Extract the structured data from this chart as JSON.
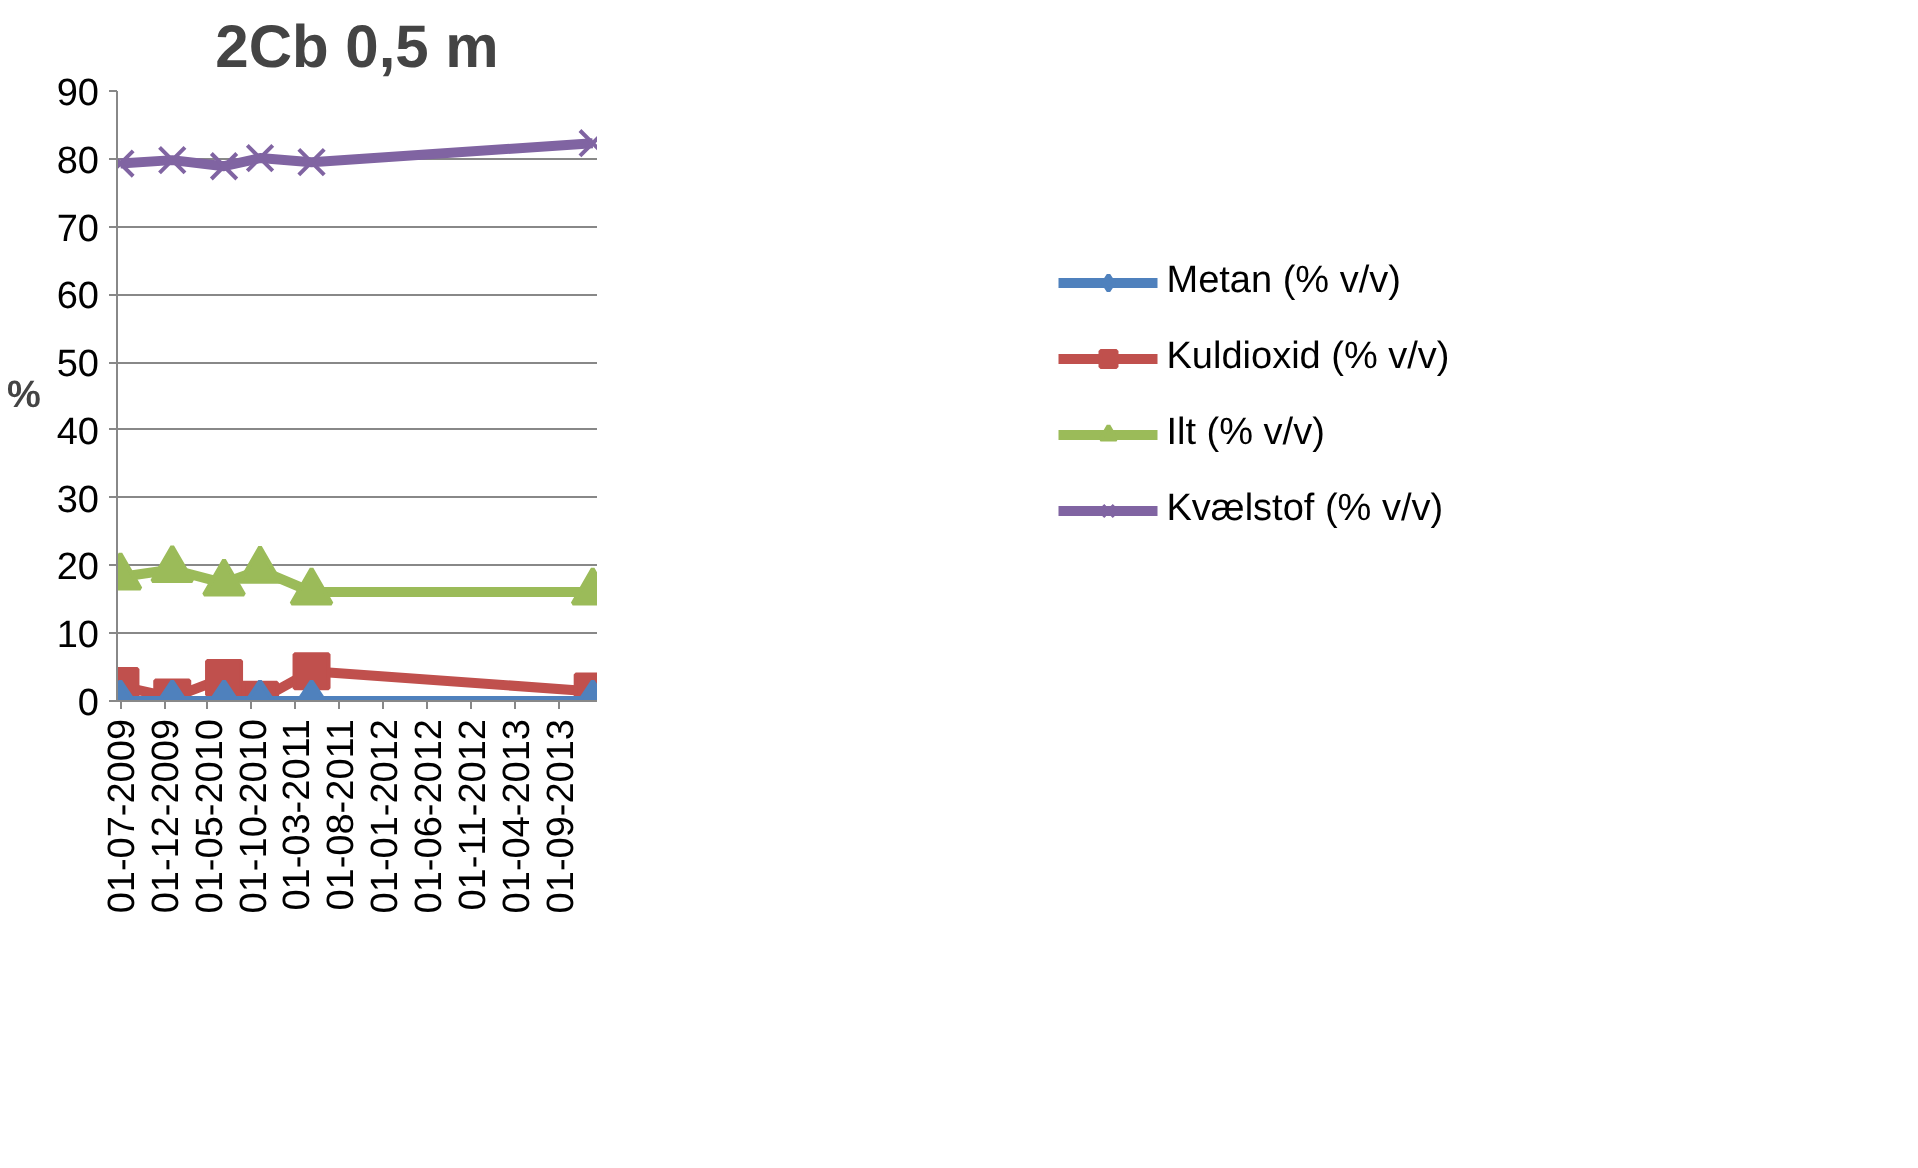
{
  "chart_data": {
    "type": "line",
    "title": "2Cb 0,5 m",
    "ylabel": "%",
    "x": [
      "2009-07-01",
      "2009-12-28",
      "2010-06-26",
      "2010-10-29",
      "2011-04-26",
      "2013-12-28"
    ],
    "series": [
      {
        "name": "Metan (% v/v)",
        "color": "#4f81bd",
        "marker": "diamond",
        "values": [
          0,
          0,
          0,
          0,
          0,
          0
        ]
      },
      {
        "name": "Kuldioxid (% v/v)",
        "color": "#c0504d",
        "marker": "square",
        "values": [
          2.2,
          0.5,
          3.4,
          0.2,
          4.4,
          1.4
        ]
      },
      {
        "name": "Ilt (% v/v)",
        "color": "#9bbb59",
        "marker": "triangle",
        "values": [
          18.3,
          19.4,
          17.4,
          19.3,
          16.1,
          16.1
        ]
      },
      {
        "name": "Kvælstof (% v/v)",
        "color": "#8064a2",
        "marker": "cross",
        "values": [
          79.3,
          79.8,
          78.9,
          80.1,
          79.5,
          82.3
        ]
      }
    ],
    "xlim": [
      "2009-06-19",
      "2014-01-12"
    ],
    "xticks": [
      {
        "value": "2009-07-01",
        "label": "01-07-2009"
      },
      {
        "value": "2009-12-01",
        "label": "01-12-2009"
      },
      {
        "value": "2010-05-01",
        "label": "01-05-2010"
      },
      {
        "value": "2010-10-01",
        "label": "01-10-2010"
      },
      {
        "value": "2011-03-01",
        "label": "01-03-2011"
      },
      {
        "value": "2011-08-01",
        "label": "01-08-2011"
      },
      {
        "value": "2012-01-01",
        "label": "01-01-2012"
      },
      {
        "value": "2012-06-01",
        "label": "01-06-2012"
      },
      {
        "value": "2012-11-01",
        "label": "01-11-2012"
      },
      {
        "value": "2013-04-01",
        "label": "01-04-2013"
      },
      {
        "value": "2013-09-01",
        "label": "01-09-2013"
      }
    ],
    "ylim": [
      0,
      90
    ],
    "yticks": [
      0,
      10,
      20,
      30,
      40,
      50,
      60,
      70,
      80,
      90
    ],
    "grid": "y",
    "legend": "right",
    "line_style": "solid"
  }
}
